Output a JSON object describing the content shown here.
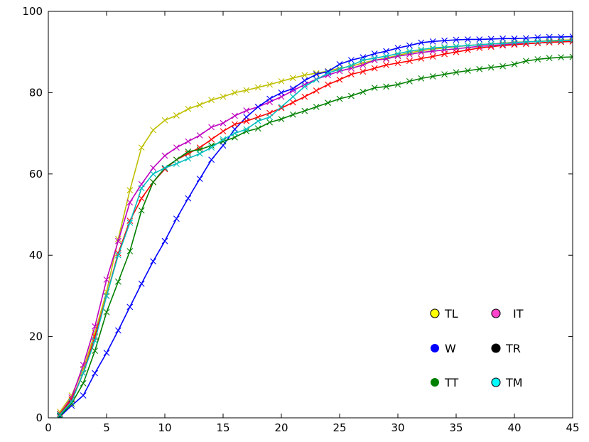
{
  "chart_data": {
    "type": "line",
    "title": "",
    "xlabel": "",
    "ylabel": "",
    "xlim": [
      0,
      45
    ],
    "ylim": [
      0,
      100
    ],
    "xticks": [
      0,
      5,
      10,
      15,
      20,
      25,
      30,
      35,
      40,
      45
    ],
    "yticks": [
      0,
      20,
      40,
      60,
      80,
      100
    ],
    "grid": false,
    "legend_position": "lower-right",
    "marker": "x",
    "x": [
      1,
      2,
      3,
      4,
      5,
      6,
      7,
      8,
      9,
      10,
      11,
      12,
      13,
      14,
      15,
      16,
      17,
      18,
      19,
      20,
      21,
      22,
      23,
      24,
      25,
      26,
      27,
      28,
      29,
      30,
      31,
      32,
      33,
      34,
      35,
      36,
      37,
      38,
      39,
      40,
      41,
      42,
      43,
      44,
      45
    ],
    "series": [
      {
        "name": "TL",
        "color": "#bfbf00",
        "legend_style": "circle-light",
        "values": [
          1.5,
          5.5,
          12,
          21,
          31,
          44,
          56,
          66.5,
          70.8,
          73.2,
          74.4,
          76,
          77,
          78.2,
          79,
          80,
          80.6,
          81.3,
          82,
          82.8,
          83.6,
          84.3,
          84.8,
          85.3,
          86,
          86.5,
          87.3,
          88,
          88.5,
          89.2,
          89.8,
          90.3,
          90.7,
          91,
          91.3,
          91.6,
          91.8,
          92,
          92.2,
          92.4,
          92.5,
          92.6,
          92.8,
          92.9,
          93
        ]
      },
      {
        "name": "IT",
        "color": "#bf00bf",
        "legend_style": "circle-outlined",
        "values": [
          1,
          5,
          13,
          22.5,
          34,
          43.5,
          53,
          57.5,
          61.5,
          64.5,
          66.5,
          68,
          69.5,
          71.5,
          72.5,
          74.3,
          75.6,
          76.5,
          77.7,
          79,
          80.5,
          82,
          83.3,
          84.3,
          85.3,
          86,
          86.8,
          88,
          88.3,
          89,
          89.4,
          89.9,
          90.2,
          90.5,
          90.8,
          91.1,
          91.4,
          91.6,
          91.8,
          92,
          92.1,
          92.2,
          92.4,
          92.5,
          92.6
        ]
      },
      {
        "name": "W",
        "color": "#0000ff",
        "legend_style": "circle",
        "values": [
          0.3,
          3,
          5.5,
          11,
          16,
          21.5,
          27.3,
          33,
          38.5,
          43.5,
          49,
          54,
          58.8,
          63.5,
          67,
          71,
          74,
          76.5,
          78.5,
          80,
          81,
          83,
          84.5,
          85.2,
          87,
          88,
          88.7,
          89.6,
          90.2,
          91,
          91.6,
          92.3,
          92.6,
          92.8,
          93,
          93.1,
          93.1,
          93.2,
          93.3,
          93.3,
          93.4,
          93.6,
          93.7,
          93.7,
          93.8
        ]
      },
      {
        "name": "TR",
        "color": "#ff0000",
        "legend_style": "circle",
        "values": [
          1,
          4.5,
          11,
          20,
          30,
          40.5,
          48.5,
          54,
          58,
          61.2,
          63.5,
          65,
          66.5,
          68.5,
          70.5,
          72.2,
          73,
          74,
          75,
          76.2,
          77.6,
          79,
          80.5,
          82,
          83.2,
          84.5,
          85.2,
          86,
          86.8,
          87.3,
          87.8,
          88.4,
          88.9,
          89.5,
          90,
          90.5,
          91,
          91.3,
          91.6,
          91.8,
          92,
          92.2,
          92.4,
          92.5,
          92.6
        ]
      },
      {
        "name": "TT",
        "color": "#008000",
        "legend_style": "circle",
        "values": [
          0.5,
          3.5,
          8.5,
          16.5,
          26,
          33.5,
          41,
          51,
          58,
          61.5,
          63.5,
          65.5,
          66,
          67,
          68,
          69,
          70.5,
          71.2,
          72.7,
          73.5,
          74.6,
          75.5,
          76.5,
          77.5,
          78.5,
          79.2,
          80.2,
          81.2,
          81.5,
          82,
          82.8,
          83.5,
          84,
          84.5,
          85,
          85.4,
          85.8,
          86.2,
          86.5,
          87,
          87.8,
          88.2,
          88.5,
          88.7,
          88.8
        ]
      },
      {
        "name": "TM",
        "color": "#00bfbf",
        "legend_style": "circle",
        "values": [
          0.8,
          4,
          11,
          19,
          30,
          40,
          48,
          56.5,
          60,
          61.5,
          62.5,
          63.8,
          65,
          66.5,
          68.5,
          70,
          71,
          73,
          74,
          76.5,
          79,
          81.5,
          83.2,
          84.8,
          85.8,
          86.7,
          88,
          88.5,
          89,
          89.6,
          90.2,
          90.6,
          91,
          91.2,
          91.4,
          91.6,
          91.8,
          92,
          92.1,
          92.3,
          92.5,
          92.6,
          92.7,
          92.8,
          92.9
        ]
      }
    ]
  }
}
